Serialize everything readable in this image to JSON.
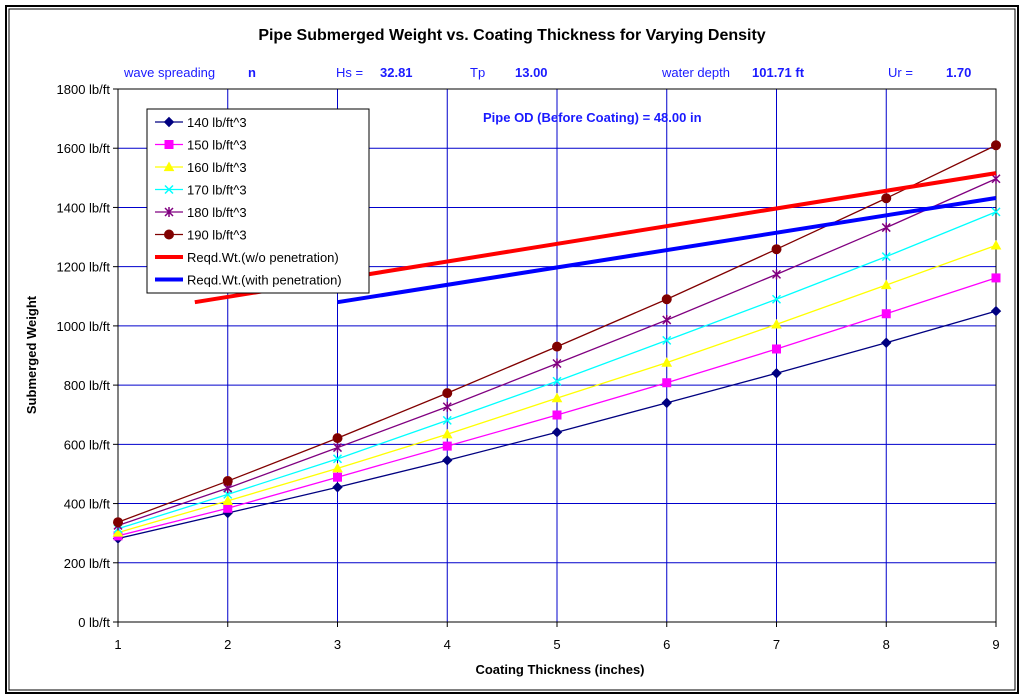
{
  "chart_data": {
    "type": "line",
    "title": "Pipe Submerged Weight vs. Coating Thickness for Varying Density",
    "xlabel": "Coating Thickness (inches)",
    "ylabel": "Submerged Weight",
    "xlim": [
      1,
      9
    ],
    "ylim": [
      0,
      1800
    ],
    "x_ticks": [
      "1",
      "2",
      "3",
      "4",
      "5",
      "6",
      "7",
      "8",
      "9"
    ],
    "y_ticks": [
      "0 lb/ft",
      "200 lb/ft",
      "400 lb/ft",
      "600 lb/ft",
      "800 lb/ft",
      "1000 lb/ft",
      "1200 lb/ft",
      "1400 lb/ft",
      "1600 lb/ft",
      "1800 lb/ft"
    ],
    "grid": true,
    "legend_position": "top-left",
    "info": {
      "wave_label": "wave spreading",
      "wave_value": "n",
      "hs_label": "Hs =",
      "hs_value": "32.81",
      "tp_label": "Tp",
      "tp_value": "13.00",
      "depth_label": "water depth",
      "depth_value": "101.71 ft",
      "ur_label": "Ur =",
      "ur_value": "1.70",
      "pipe_od": "Pipe OD (Before Coating) = 48.00 in"
    },
    "x": [
      1,
      2,
      3,
      4,
      5,
      6,
      7,
      8,
      9
    ],
    "series": [
      {
        "name": "140 lb/ft^3",
        "color": "#000080",
        "marker": "diamond",
        "values": [
          282,
          368,
          455,
          546,
          641,
          740,
          840,
          943,
          1050
        ]
      },
      {
        "name": "150 lb/ft^3",
        "color": "#ff00ff",
        "marker": "square",
        "values": [
          291,
          384,
          489,
          594,
          699,
          808,
          922,
          1041,
          1162
        ]
      },
      {
        "name": "160 lb/ft^3",
        "color": "#ffff00",
        "marker": "triangle",
        "values": [
          302,
          409,
          519,
          634,
          756,
          876,
          1005,
          1138,
          1272
        ]
      },
      {
        "name": "170 lb/ft^3",
        "color": "#00ffff",
        "marker": "x",
        "values": [
          315,
          431,
          551,
          681,
          813,
          951,
          1090,
          1234,
          1385
        ]
      },
      {
        "name": "180 lb/ft^3",
        "color": "#800080",
        "marker": "asterisk",
        "values": [
          326,
          452,
          589,
          727,
          873,
          1020,
          1174,
          1332,
          1497
        ]
      },
      {
        "name": "190 lb/ft^3",
        "color": "#800000",
        "marker": "circle",
        "values": [
          337,
          476,
          621,
          773,
          930,
          1090,
          1259,
          1431,
          1610
        ]
      },
      {
        "name": "Reqd.Wt.(w/o penetration)",
        "color": "#ff0000",
        "thick": true,
        "x": [
          1.7,
          9
        ],
        "values": [
          1080,
          1516
        ]
      },
      {
        "name": "Reqd.Wt.(with penetration)",
        "color": "#0000ff",
        "thick": true,
        "x": [
          3,
          9
        ],
        "values": [
          1080,
          1432
        ]
      }
    ]
  }
}
